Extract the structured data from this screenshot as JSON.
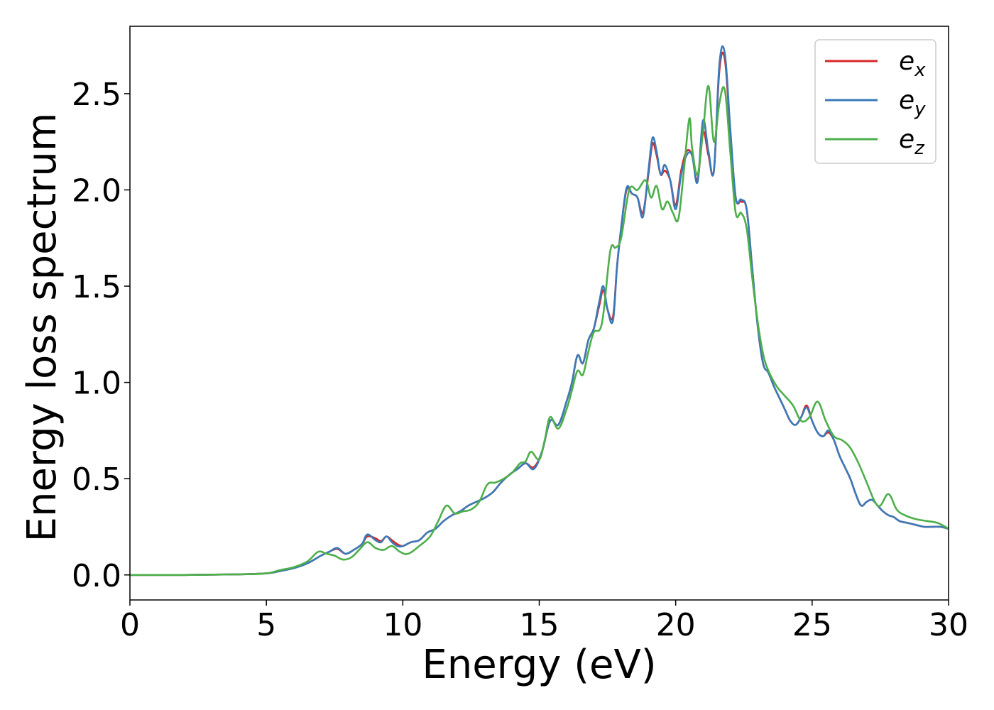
{
  "chart_data": {
    "type": "line",
    "xlabel": "Energy (eV)",
    "ylabel": "Energy loss spectrum",
    "xlim": [
      0,
      30
    ],
    "ylim": [
      -0.13,
      2.85
    ],
    "xticks": [
      0,
      5,
      10,
      15,
      20,
      25,
      30
    ],
    "yticks": [
      0.0,
      0.5,
      1.0,
      1.5,
      2.0,
      2.5
    ],
    "xtick_labels": [
      "0",
      "5",
      "10",
      "15",
      "20",
      "25",
      "30"
    ],
    "ytick_labels": [
      "0.0",
      "0.5",
      "1.0",
      "1.5",
      "2.0",
      "2.5"
    ],
    "grid": false,
    "legend_position": "top-right",
    "series": [
      {
        "name": "e_x",
        "label_base": "e",
        "label_sub": "x",
        "color": "#d62728",
        "x": [
          0,
          2,
          4,
          5,
          5.5,
          6,
          6.5,
          7,
          7.3,
          7.6,
          7.9,
          8.2,
          8.5,
          8.7,
          9.0,
          9.2,
          9.4,
          9.6,
          9.8,
          10.0,
          10.3,
          10.6,
          10.9,
          11.2,
          11.5,
          11.8,
          12.1,
          12.4,
          12.7,
          13.0,
          13.3,
          13.6,
          13.9,
          14.2,
          14.5,
          14.8,
          15.1,
          15.4,
          15.7,
          16.0,
          16.2,
          16.4,
          16.6,
          16.8,
          17.0,
          17.2,
          17.35,
          17.5,
          17.7,
          17.85,
          18.0,
          18.2,
          18.4,
          18.6,
          18.8,
          19.0,
          19.15,
          19.3,
          19.45,
          19.6,
          19.8,
          20.0,
          20.2,
          20.4,
          20.6,
          20.8,
          21.0,
          21.2,
          21.4,
          21.6,
          21.8,
          22.0,
          22.2,
          22.4,
          22.6,
          22.8,
          23.0,
          23.2,
          23.4,
          23.6,
          23.8,
          24.0,
          24.2,
          24.4,
          24.6,
          24.8,
          25.0,
          25.2,
          25.4,
          25.6,
          25.8,
          26.0,
          26.2,
          26.4,
          26.6,
          26.8,
          27.0,
          27.2,
          27.4,
          27.6,
          27.8,
          28.0,
          28.2,
          28.5,
          28.8,
          29.1,
          29.4,
          29.7,
          30.0
        ],
        "y": [
          0,
          0,
          0.003,
          0.008,
          0.02,
          0.035,
          0.06,
          0.1,
          0.12,
          0.135,
          0.11,
          0.13,
          0.16,
          0.2,
          0.19,
          0.175,
          0.2,
          0.18,
          0.16,
          0.15,
          0.17,
          0.18,
          0.22,
          0.24,
          0.28,
          0.31,
          0.33,
          0.36,
          0.38,
          0.4,
          0.43,
          0.48,
          0.52,
          0.55,
          0.58,
          0.56,
          0.64,
          0.8,
          0.78,
          0.9,
          1.0,
          1.14,
          1.1,
          1.22,
          1.28,
          1.4,
          1.48,
          1.38,
          1.34,
          1.6,
          1.8,
          2.0,
          1.98,
          1.96,
          1.88,
          2.08,
          2.24,
          2.18,
          2.08,
          2.1,
          2.05,
          1.92,
          2.1,
          2.2,
          2.18,
          2.05,
          2.3,
          2.18,
          2.1,
          2.62,
          2.68,
          2.3,
          1.96,
          1.94,
          1.9,
          1.6,
          1.3,
          1.1,
          1.05,
          0.98,
          0.92,
          0.86,
          0.8,
          0.78,
          0.82,
          0.88,
          0.8,
          0.74,
          0.72,
          0.74,
          0.7,
          0.62,
          0.56,
          0.5,
          0.42,
          0.36,
          0.38,
          0.39,
          0.36,
          0.33,
          0.31,
          0.3,
          0.28,
          0.27,
          0.26,
          0.25,
          0.25,
          0.25,
          0.24
        ]
      },
      {
        "name": "e_y",
        "label_base": "e",
        "label_sub": "y",
        "color": "#3a7ab8",
        "x": [
          0,
          2,
          4,
          5,
          5.5,
          6,
          6.5,
          7,
          7.3,
          7.6,
          7.9,
          8.2,
          8.5,
          8.7,
          9.0,
          9.2,
          9.4,
          9.6,
          9.8,
          10.0,
          10.3,
          10.6,
          10.9,
          11.2,
          11.5,
          11.8,
          12.1,
          12.4,
          12.7,
          13.0,
          13.3,
          13.6,
          13.9,
          14.2,
          14.5,
          14.8,
          15.1,
          15.4,
          15.7,
          16.0,
          16.2,
          16.4,
          16.6,
          16.8,
          17.0,
          17.2,
          17.35,
          17.5,
          17.7,
          17.85,
          18.0,
          18.2,
          18.4,
          18.6,
          18.8,
          19.0,
          19.15,
          19.3,
          19.45,
          19.6,
          19.8,
          20.0,
          20.2,
          20.4,
          20.6,
          20.8,
          21.0,
          21.2,
          21.4,
          21.6,
          21.8,
          22.0,
          22.2,
          22.4,
          22.6,
          22.8,
          23.0,
          23.2,
          23.4,
          23.6,
          23.8,
          24.0,
          24.2,
          24.4,
          24.6,
          24.8,
          25.0,
          25.2,
          25.4,
          25.6,
          25.8,
          26.0,
          26.2,
          26.4,
          26.6,
          26.8,
          27.0,
          27.2,
          27.4,
          27.6,
          27.8,
          28.0,
          28.2,
          28.5,
          28.8,
          29.1,
          29.4,
          29.7,
          30.0
        ],
        "y": [
          0,
          0,
          0.003,
          0.008,
          0.02,
          0.035,
          0.06,
          0.1,
          0.12,
          0.14,
          0.11,
          0.13,
          0.16,
          0.21,
          0.18,
          0.17,
          0.2,
          0.17,
          0.15,
          0.15,
          0.17,
          0.18,
          0.22,
          0.24,
          0.28,
          0.31,
          0.33,
          0.36,
          0.38,
          0.4,
          0.43,
          0.48,
          0.52,
          0.55,
          0.58,
          0.55,
          0.64,
          0.8,
          0.78,
          0.9,
          1.0,
          1.14,
          1.1,
          1.22,
          1.28,
          1.42,
          1.5,
          1.38,
          1.32,
          1.6,
          1.8,
          2.01,
          1.98,
          1.96,
          1.86,
          2.1,
          2.27,
          2.2,
          2.08,
          2.13,
          2.05,
          1.9,
          2.08,
          2.18,
          2.18,
          2.04,
          2.36,
          2.2,
          2.1,
          2.65,
          2.71,
          2.32,
          1.96,
          1.95,
          1.9,
          1.6,
          1.3,
          1.1,
          1.05,
          0.98,
          0.92,
          0.86,
          0.8,
          0.78,
          0.82,
          0.87,
          0.8,
          0.74,
          0.72,
          0.75,
          0.7,
          0.62,
          0.56,
          0.5,
          0.42,
          0.36,
          0.38,
          0.39,
          0.36,
          0.33,
          0.31,
          0.3,
          0.28,
          0.27,
          0.26,
          0.25,
          0.25,
          0.25,
          0.24
        ]
      },
      {
        "name": "e_z",
        "label_base": "e",
        "label_sub": "z",
        "color": "#4daf4a",
        "x": [
          0,
          2,
          4,
          5,
          5.5,
          6,
          6.5,
          6.9,
          7.2,
          7.5,
          7.8,
          8.1,
          8.4,
          8.7,
          9.0,
          9.3,
          9.6,
          9.9,
          10.2,
          10.6,
          11.0,
          11.3,
          11.6,
          11.9,
          12.2,
          12.5,
          12.8,
          13.1,
          13.4,
          13.7,
          14.0,
          14.3,
          14.5,
          14.7,
          15.0,
          15.2,
          15.4,
          15.7,
          16.0,
          16.2,
          16.4,
          16.6,
          16.8,
          17.0,
          17.3,
          17.6,
          17.8,
          18.0,
          18.3,
          18.6,
          18.9,
          19.1,
          19.3,
          19.5,
          19.7,
          19.9,
          20.1,
          20.3,
          20.5,
          20.6,
          20.8,
          21.0,
          21.2,
          21.4,
          21.6,
          21.8,
          22.0,
          22.2,
          22.4,
          22.6,
          22.8,
          23.0,
          23.2,
          23.4,
          23.7,
          24.0,
          24.3,
          24.6,
          24.9,
          25.2,
          25.5,
          25.8,
          26.1,
          26.4,
          26.7,
          27.0,
          27.3,
          27.5,
          27.8,
          28.1,
          28.4,
          28.8,
          29.2,
          29.6,
          30.0
        ],
        "y": [
          0,
          0,
          0.003,
          0.008,
          0.025,
          0.04,
          0.07,
          0.12,
          0.11,
          0.1,
          0.08,
          0.09,
          0.13,
          0.17,
          0.14,
          0.13,
          0.15,
          0.12,
          0.11,
          0.15,
          0.2,
          0.28,
          0.36,
          0.32,
          0.33,
          0.34,
          0.38,
          0.47,
          0.48,
          0.5,
          0.53,
          0.58,
          0.59,
          0.64,
          0.6,
          0.7,
          0.82,
          0.76,
          0.86,
          0.96,
          1.06,
          1.04,
          1.16,
          1.26,
          1.31,
          1.68,
          1.7,
          1.75,
          2.0,
          2.0,
          2.05,
          1.96,
          2.02,
          1.9,
          1.94,
          1.88,
          1.85,
          2.1,
          2.37,
          2.22,
          2.08,
          2.3,
          2.54,
          2.25,
          2.45,
          2.52,
          2.2,
          1.88,
          1.88,
          1.8,
          1.55,
          1.32,
          1.15,
          1.06,
          0.98,
          0.93,
          0.88,
          0.8,
          0.82,
          0.9,
          0.8,
          0.72,
          0.7,
          0.66,
          0.58,
          0.48,
          0.38,
          0.36,
          0.42,
          0.34,
          0.31,
          0.29,
          0.28,
          0.27,
          0.24
        ]
      }
    ]
  }
}
